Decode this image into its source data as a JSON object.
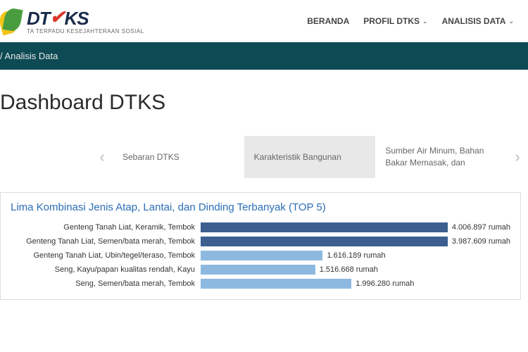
{
  "header": {
    "logo_sub": "TA TERPADU KESEJAHTERAAN SOSIAL",
    "nav": [
      {
        "label": "BERANDA",
        "has_chev": false
      },
      {
        "label": "PROFIL DTKS",
        "has_chev": true
      },
      {
        "label": "ANALISIS DATA",
        "has_chev": true
      }
    ]
  },
  "breadcrumb": "/  Analisis Data",
  "page_title": "Dashboard DTKS",
  "tabs": {
    "items": [
      {
        "label": "Sebaran DTKS",
        "active": false
      },
      {
        "label": "Karakteristik Bangunan",
        "active": true
      },
      {
        "label": "Sumber Air Minum, Bahan Bakar Memasak, dan",
        "active": false
      }
    ]
  },
  "chart": {
    "title": "Lima Kombinasi Jenis Atap, Lantai, dan Dinding Terbanyak (TOP 5)",
    "max_value": 4100000,
    "colors": {
      "dark": "#3c5f8f",
      "light": "#8db9e0"
    },
    "bars": [
      {
        "label": "Genteng Tanah Liat, Keramik, Tembok",
        "value": 4006897,
        "value_text": "4.006.897 rumah",
        "color": "dark"
      },
      {
        "label": "Genteng Tanah Liat, Semen/bata merah, Tembok",
        "value": 3987609,
        "value_text": "3.987.609 rumah",
        "color": "dark"
      },
      {
        "label": "Genteng Tanah Liat, Ubin/tegel/teraso, Tembok",
        "value": 1616189,
        "value_text": "1.616.189 rumah",
        "color": "light"
      },
      {
        "label": "Seng, Kayu/papan kualitas rendah, Kayu",
        "value": 1516668,
        "value_text": "1.516.668 rumah",
        "color": "light"
      },
      {
        "label": "Seng, Semen/bata merah, Tembok",
        "value": 1996280,
        "value_text": "1.996.280 rumah",
        "color": "light"
      }
    ]
  }
}
